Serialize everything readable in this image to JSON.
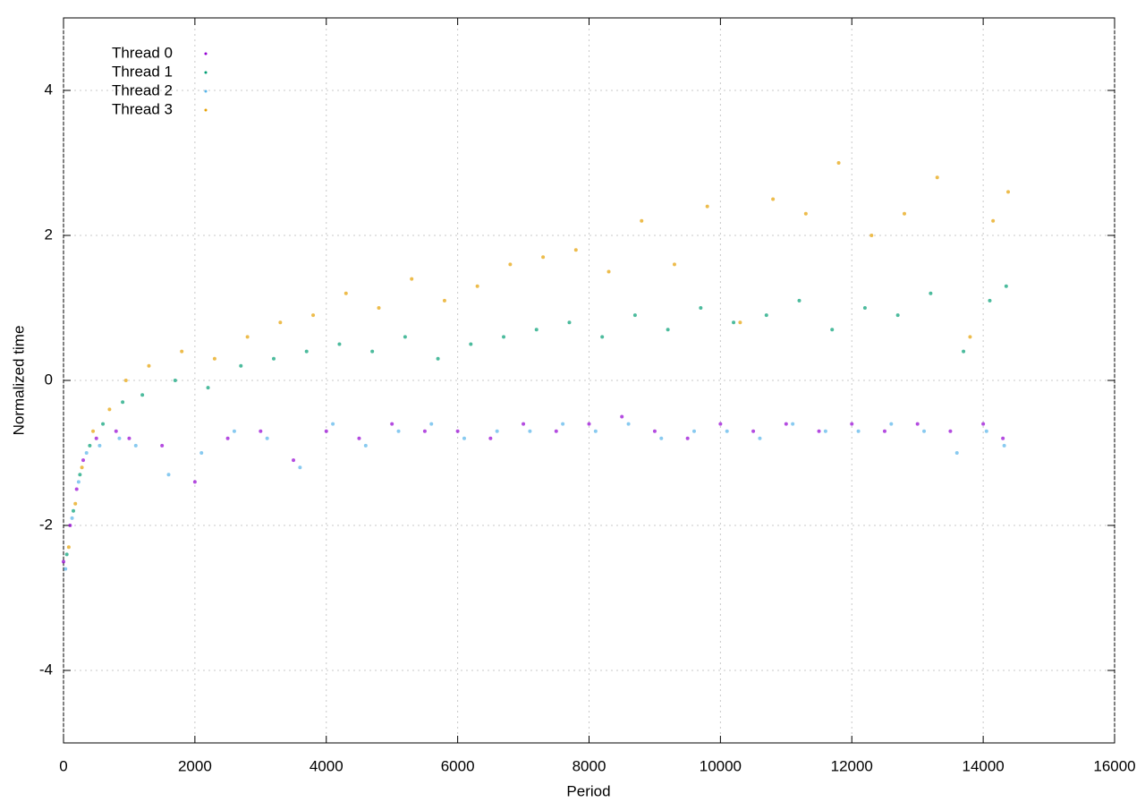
{
  "chart_data": {
    "type": "scatter",
    "xlabel": "Period",
    "ylabel": "Normalized time",
    "xlim": [
      0,
      16000
    ],
    "ylim": [
      -5,
      5
    ],
    "xticks": [
      0,
      2000,
      4000,
      6000,
      8000,
      10000,
      12000,
      14000,
      16000
    ],
    "yticks": [
      -4,
      -2,
      0,
      2,
      4
    ],
    "grid": true,
    "legend": "top-left",
    "series": [
      {
        "name": "Thread 0",
        "color": "#9400d3",
        "x": [
          0,
          100,
          200,
          300,
          500,
          800,
          1000,
          1500,
          2000,
          2500,
          3000,
          3500,
          4000,
          4500,
          5000,
          5500,
          6000,
          6500,
          7000,
          7500,
          8000,
          8500,
          9000,
          9500,
          10000,
          10500,
          11000,
          11500,
          12000,
          12500,
          13000,
          13500,
          14000,
          14300
        ],
        "values": [
          -2.5,
          -2.0,
          -1.5,
          -1.1,
          -0.8,
          -0.7,
          -0.8,
          -0.9,
          -1.4,
          -0.8,
          -0.7,
          -1.1,
          -0.7,
          -0.8,
          -0.6,
          -0.7,
          -0.7,
          -0.8,
          -0.6,
          -0.7,
          -0.6,
          -0.5,
          -0.7,
          -0.8,
          -0.6,
          -0.7,
          -0.6,
          -0.7,
          -0.6,
          -0.7,
          -0.6,
          -0.7,
          -0.6,
          -0.8
        ]
      },
      {
        "name": "Thread 1",
        "color": "#009e73",
        "x": [
          50,
          150,
          250,
          400,
          600,
          900,
          1200,
          1700,
          2200,
          2700,
          3200,
          3700,
          4200,
          4700,
          5200,
          5700,
          6200,
          6700,
          7200,
          7700,
          8200,
          8700,
          9200,
          9700,
          10200,
          10700,
          11200,
          11700,
          12200,
          12700,
          13200,
          13700,
          14100,
          14350
        ],
        "values": [
          -2.4,
          -1.8,
          -1.3,
          -0.9,
          -0.6,
          -0.3,
          -0.2,
          0.0,
          -0.1,
          0.2,
          0.3,
          0.4,
          0.5,
          0.4,
          0.6,
          0.3,
          0.5,
          0.6,
          0.7,
          0.8,
          0.6,
          0.9,
          0.7,
          1.0,
          0.8,
          0.9,
          1.1,
          0.7,
          1.0,
          0.9,
          1.2,
          0.4,
          1.1,
          1.3
        ]
      },
      {
        "name": "Thread 2",
        "color": "#56b4e9",
        "x": [
          30,
          130,
          230,
          350,
          550,
          850,
          1100,
          1600,
          2100,
          2600,
          3100,
          3600,
          4100,
          4600,
          5100,
          5600,
          6100,
          6600,
          7100,
          7600,
          8100,
          8600,
          9100,
          9600,
          10100,
          10600,
          11100,
          11600,
          12100,
          12600,
          13100,
          13600,
          14050,
          14320
        ],
        "values": [
          -2.6,
          -1.9,
          -1.4,
          -1.0,
          -0.9,
          -0.8,
          -0.9,
          -1.3,
          -1.0,
          -0.7,
          -0.8,
          -1.2,
          -0.6,
          -0.9,
          -0.7,
          -0.6,
          -0.8,
          -0.7,
          -0.7,
          -0.6,
          -0.7,
          -0.6,
          -0.8,
          -0.7,
          -0.7,
          -0.8,
          -0.6,
          -0.7,
          -0.7,
          -0.6,
          -0.7,
          -1.0,
          -0.7,
          -0.9
        ]
      },
      {
        "name": "Thread 3",
        "color": "#e69f00",
        "x": [
          80,
          180,
          280,
          450,
          700,
          950,
          1300,
          1800,
          2300,
          2800,
          3300,
          3800,
          4300,
          4800,
          5300,
          5800,
          6300,
          6800,
          7300,
          7800,
          8300,
          8800,
          9300,
          9800,
          10300,
          10800,
          11300,
          11800,
          12300,
          12800,
          13300,
          13800,
          14150,
          14380
        ],
        "values": [
          -2.3,
          -1.7,
          -1.2,
          -0.7,
          -0.4,
          0.0,
          0.2,
          0.4,
          0.3,
          0.6,
          0.8,
          0.9,
          1.2,
          1.0,
          1.4,
          1.1,
          1.3,
          1.6,
          1.7,
          1.8,
          1.5,
          2.2,
          1.6,
          2.4,
          0.8,
          2.5,
          2.3,
          3.0,
          2.0,
          2.3,
          2.8,
          0.6,
          2.2,
          2.6
        ]
      }
    ]
  }
}
